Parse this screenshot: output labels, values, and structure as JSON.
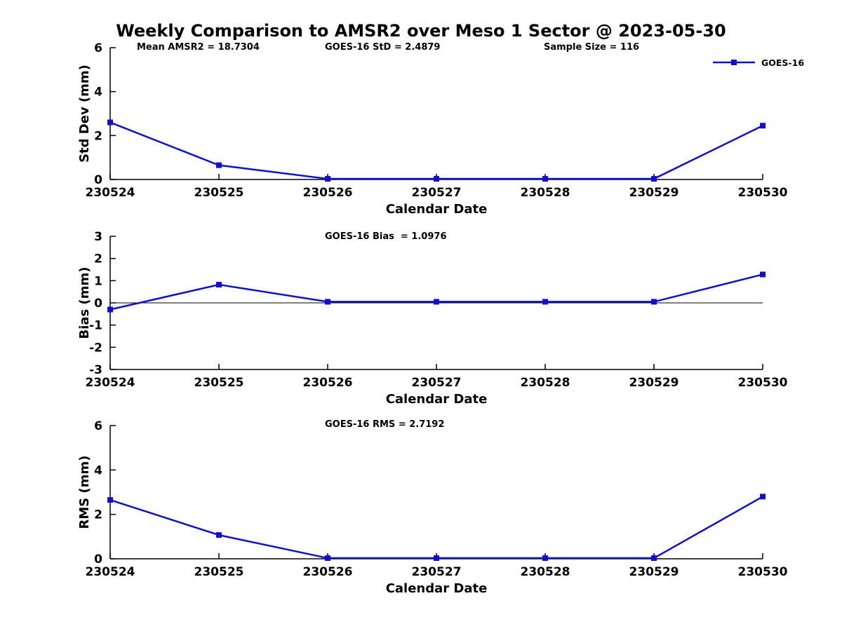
{
  "title": "Weekly Comparison to AMSR2 over Meso 1 Sector @ 2023-05-30",
  "header_stats": {
    "mean_amsr2": "Mean AMSR2 = 18.7304",
    "goes16_std": "GOES-16 StD = 2.4879",
    "sample_size": "Sample Size = 116"
  },
  "legend": {
    "label": "GOES-16",
    "position": "top-right",
    "marker": "square"
  },
  "colors": {
    "line": "#0f0fd2",
    "axis": "#000000",
    "text": "#000000",
    "background": "#ffffff"
  },
  "chart_data": [
    {
      "type": "line",
      "ylabel": "Std Dev (mm)",
      "xlabel": "Calendar Date",
      "categories": [
        "230524",
        "230525",
        "230526",
        "230527",
        "230528",
        "230529",
        "230530"
      ],
      "ylim": [
        0,
        6
      ],
      "yticks": [
        0,
        2,
        4,
        6
      ],
      "grid": false,
      "annotation": "",
      "series": [
        {
          "name": "GOES-16",
          "values": [
            2.6,
            0.65,
            0.03,
            0.03,
            0.03,
            0.03,
            2.45
          ]
        }
      ]
    },
    {
      "type": "line",
      "ylabel": "Bias (mm)",
      "xlabel": "Calendar Date",
      "categories": [
        "230524",
        "230525",
        "230526",
        "230527",
        "230528",
        "230529",
        "230530"
      ],
      "ylim": [
        -3,
        3
      ],
      "yticks": [
        -3,
        -2,
        -1,
        0,
        1,
        2,
        3
      ],
      "grid": false,
      "zero_line": true,
      "annotation": "GOES-16 Bias  = 1.0976",
      "series": [
        {
          "name": "GOES-16",
          "values": [
            -0.3,
            0.82,
            0.05,
            0.05,
            0.05,
            0.05,
            1.28
          ]
        }
      ]
    },
    {
      "type": "line",
      "ylabel": "RMS (mm)",
      "xlabel": "Calendar Date",
      "categories": [
        "230524",
        "230525",
        "230526",
        "230527",
        "230528",
        "230529",
        "230530"
      ],
      "ylim": [
        0,
        6
      ],
      "yticks": [
        0,
        2,
        4,
        6
      ],
      "grid": false,
      "annotation": "GOES-16 RMS = 2.7192",
      "series": [
        {
          "name": "GOES-16",
          "values": [
            2.65,
            1.07,
            0.03,
            0.03,
            0.03,
            0.03,
            2.8
          ]
        }
      ]
    }
  ]
}
